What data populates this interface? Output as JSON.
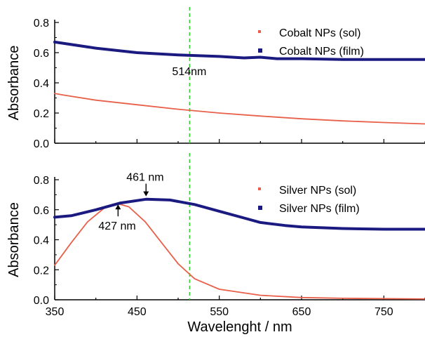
{
  "chart_data": [
    {
      "type": "line",
      "ylabel": "Absorbance",
      "xlim": [
        350,
        800
      ],
      "ylim": [
        0,
        0.8
      ],
      "yticks": [
        "0.0",
        "0.2",
        "0.4",
        "0.6",
        "0.8"
      ],
      "legend_position": "top-right",
      "reference_line": {
        "x": 514,
        "color": "#33cc33",
        "style": "dashed"
      },
      "annotations": [
        {
          "text": "514nm",
          "x": 514,
          "y": 0.48
        }
      ],
      "series": [
        {
          "name": "Cobalt NPs (sol)",
          "color": "#e8604a",
          "x": [
            350,
            360,
            400,
            450,
            500,
            550,
            600,
            650,
            700,
            750,
            800
          ],
          "values": [
            0.33,
            0.32,
            0.285,
            0.255,
            0.225,
            0.2,
            0.18,
            0.162,
            0.148,
            0.137,
            0.128
          ]
        },
        {
          "name": "Cobalt NPs (film)",
          "color": "#1a1a80",
          "x": [
            350,
            400,
            450,
            500,
            550,
            580,
            600,
            620,
            650,
            700,
            750,
            800
          ],
          "values": [
            0.67,
            0.63,
            0.6,
            0.585,
            0.575,
            0.565,
            0.57,
            0.56,
            0.56,
            0.555,
            0.555,
            0.555
          ]
        }
      ]
    },
    {
      "type": "line",
      "ylabel": "Absorbance",
      "xlabel": "Wavelenght / nm",
      "xlim": [
        350,
        800
      ],
      "ylim": [
        0,
        0.8
      ],
      "xticks": [
        "350",
        "450",
        "550",
        "650",
        "750"
      ],
      "yticks": [
        "0.0",
        "0.2",
        "0.4",
        "0.6",
        "0.8"
      ],
      "legend_position": "top-right",
      "reference_line": {
        "x": 514,
        "color": "#33cc33",
        "style": "dashed"
      },
      "annotations": [
        {
          "text": "461 nm",
          "x": 461,
          "y": 0.68,
          "arrow": "down"
        },
        {
          "text": "427 nm",
          "x": 427,
          "y": 0.64,
          "arrow": "up"
        }
      ],
      "series": [
        {
          "name": "Silver NPs (sol)",
          "color": "#e8604a",
          "x": [
            350,
            370,
            390,
            410,
            427,
            440,
            460,
            480,
            500,
            520,
            550,
            600,
            650,
            700,
            800
          ],
          "values": [
            0.23,
            0.38,
            0.52,
            0.61,
            0.64,
            0.62,
            0.52,
            0.38,
            0.24,
            0.14,
            0.07,
            0.03,
            0.015,
            0.01,
            0.005
          ]
        },
        {
          "name": "Silver NPs (film)",
          "color": "#1a1a80",
          "x": [
            350,
            370,
            400,
            430,
            461,
            490,
            520,
            550,
            580,
            600,
            630,
            650,
            700,
            750,
            800
          ],
          "values": [
            0.55,
            0.56,
            0.6,
            0.645,
            0.67,
            0.665,
            0.635,
            0.59,
            0.545,
            0.515,
            0.495,
            0.485,
            0.475,
            0.47,
            0.47
          ]
        }
      ]
    }
  ]
}
